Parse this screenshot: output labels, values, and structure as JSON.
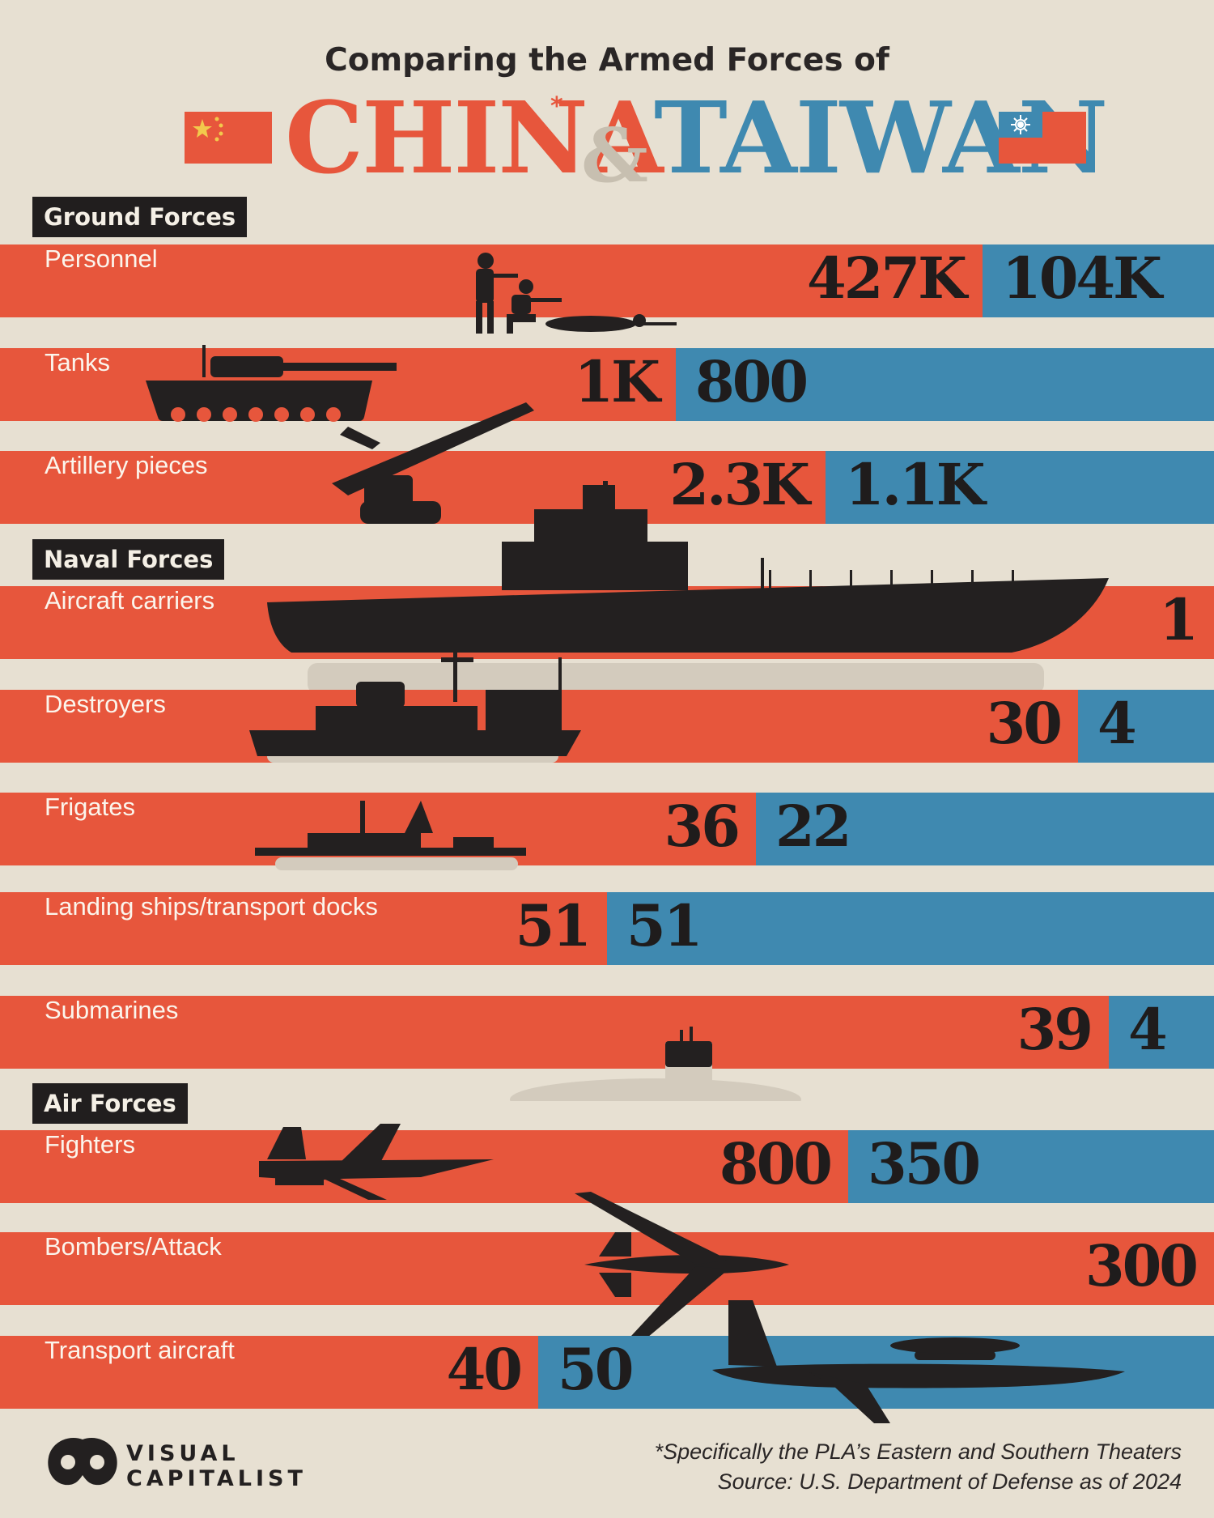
{
  "header": {
    "kicker": "Comparing the Armed Forces of",
    "country_a": "CHINA",
    "asterisk": "*",
    "ampersand": "&",
    "country_b": "TAIWAN"
  },
  "colors": {
    "china": "#e7563c",
    "taiwan": "#3f89b0",
    "background": "#e7e0d2",
    "label_box": "#211e1e"
  },
  "sections": {
    "ground": "Ground Forces",
    "naval": "Naval Forces",
    "air": "Air Forces"
  },
  "chart_data": {
    "type": "bar",
    "orientation": "horizontal-stacked",
    "categories": [
      "Personnel",
      "Tanks",
      "Artillery pieces",
      "Aircraft carriers",
      "Destroyers",
      "Frigates",
      "Landing ships/transport docks",
      "Submarines",
      "Fighters",
      "Bombers/Attack",
      "Transport aircraft"
    ],
    "series": [
      {
        "name": "CHINA",
        "values": [
          427000,
          1000,
          2300,
          1,
          30,
          36,
          51,
          39,
          800,
          300,
          40
        ],
        "labels": [
          "427K",
          "1K",
          "2.3K",
          "1",
          "30",
          "36",
          "51",
          "39",
          "800",
          "300",
          "40"
        ]
      },
      {
        "name": "TAIWAN",
        "values": [
          104000,
          800,
          1100,
          0,
          4,
          22,
          51,
          4,
          350,
          0,
          50
        ],
        "labels": [
          "104K",
          "800",
          "1.1K",
          "",
          "4",
          "22",
          "51",
          "4",
          "350",
          "",
          "50"
        ]
      }
    ],
    "groups": [
      {
        "name": "Ground Forces",
        "categories": [
          "Personnel",
          "Tanks",
          "Artillery pieces"
        ]
      },
      {
        "name": "Naval Forces",
        "categories": [
          "Aircraft carriers",
          "Destroyers",
          "Frigates",
          "Landing ships/transport docks",
          "Submarines"
        ]
      },
      {
        "name": "Air Forces",
        "categories": [
          "Fighters",
          "Bombers/Attack",
          "Transport aircraft"
        ]
      }
    ]
  },
  "footer": {
    "note": "*Specifically the PLA’s Eastern and Southern Theaters",
    "source": "Source: U.S. Department of Defense as of 2024",
    "brand_line1": "VISUAL",
    "brand_line2": "CAPITALIST"
  }
}
